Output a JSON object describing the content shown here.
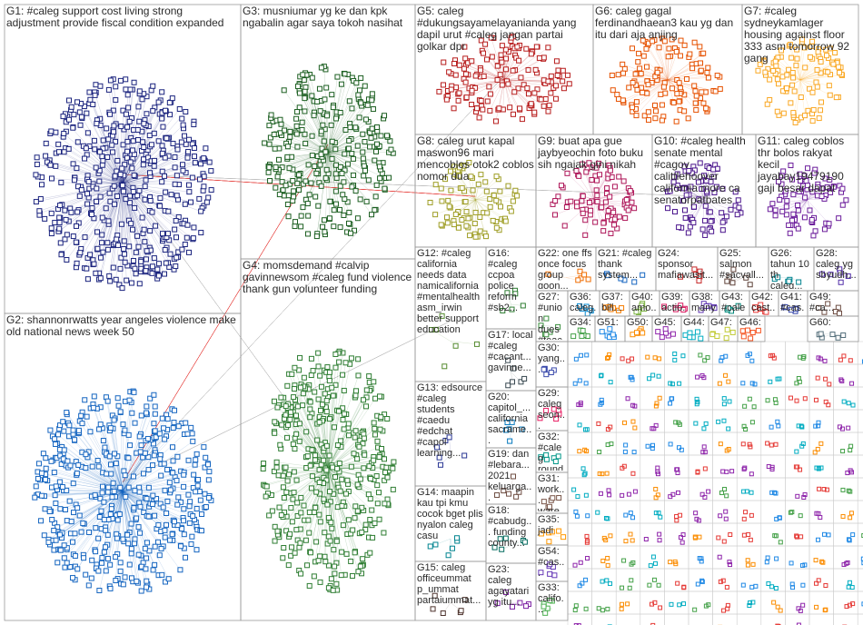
{
  "groups": [
    {
      "label": "G1: #caleg support cost living strong adjustment provide fiscal condition expanded"
    },
    {
      "label": "G2: shannonrwatts year angeles violence make old national news week 50"
    },
    {
      "label": "G3: musniumar yg ke dan kpk ngabalin agar saya tokoh nasihat"
    },
    {
      "label": "G4: momsdemand #calvip gavinnewsom #caleg fund violence thank gun volunteer funding"
    },
    {
      "label": "G5: caleg #dukungsayamelayanianda yang dapil urut #caleg jangan partai golkar dpr"
    },
    {
      "label": "G6: caleg gagal ferdinandhaean3 kau yg dan itu dari aja anjing"
    },
    {
      "label": "G7: #caleg sydneykamlager housing against floor 333 asm tomorrow 92 gang"
    },
    {
      "label": "G8: caleg urut kapal maswon96 mari mencoblos otok2 coblos nomor dua"
    },
    {
      "label": "G9: buat apa gue jaybyeochin foto buku sih ngajak gini nikah"
    },
    {
      "label": "G10: #caleg health senate mental #cagov calittlehoover california more ca senatorpatbates"
    },
    {
      "label": "G11: caleg coblos thr bolos rakyat kecil jayabay19479190 gaji besar dapat"
    },
    {
      "label": "G12: #caleg california needs data namicalifornia #mentalhealth asm_irwin better support education"
    },
    {
      "label": "G13: edsource #caleg students #caedu #edchat #capol learning..."
    },
    {
      "label": "G14: maapin kau tpi kmu cocok bget plis nyalon caleg casu"
    },
    {
      "label": "G15: caleg officeummat p_ummat partaiummat..."
    },
    {
      "label": "G16: #caleg ccpoa police reform #sb2..."
    },
    {
      "label": "G17: local #caleg #cacant... gavinne..."
    },
    {
      "label": "G20: capitol_... california sacrame..."
    },
    {
      "label": "G19: dan #lebara... 2021 keluarga..."
    },
    {
      "label": "G18: #cabudg... funding county..."
    },
    {
      "label": "G23: caleg agayatari yg itu..."
    },
    {
      "label": "G22: one ffs once focus group goon..."
    },
    {
      "label": "G21: #caleg thank system..."
    },
    {
      "label": "G24: sponsor mafiawasit..."
    },
    {
      "label": "G25: salmon #sacvall..."
    },
    {
      "label": "G26: tahun 10 th caleg..."
    },
    {
      "label": "G28: caleg yg sbyudh..."
    },
    {
      "label": "G27: #union dues #teac..."
    },
    {
      "label": "G36: caleg..."
    },
    {
      "label": "G37: bill..."
    },
    {
      "label": "G40: amo..."
    },
    {
      "label": "G39: actio..."
    },
    {
      "label": "G38: many..."
    },
    {
      "label": "G43: #cale..."
    },
    {
      "label": "G42: cast..."
    },
    {
      "label": "G41: #cas..."
    },
    {
      "label": "G49: #ca..."
    },
    {
      "label": "G34:"
    },
    {
      "label": "G51:"
    },
    {
      "label": "G50:"
    },
    {
      "label": "G45:"
    },
    {
      "label": "G44:"
    },
    {
      "label": "G47:"
    },
    {
      "label": "G46:"
    },
    {
      "label": "G60:"
    },
    {
      "label": "G30: yang..."
    },
    {
      "label": "G29: caleg seon..."
    },
    {
      "label": "G32: #caleg round..."
    },
    {
      "label": "G31: work... ware..."
    },
    {
      "label": "G35: jadi"
    },
    {
      "label": "G54: #cas..."
    },
    {
      "label": "G33: califo..."
    }
  ]
}
